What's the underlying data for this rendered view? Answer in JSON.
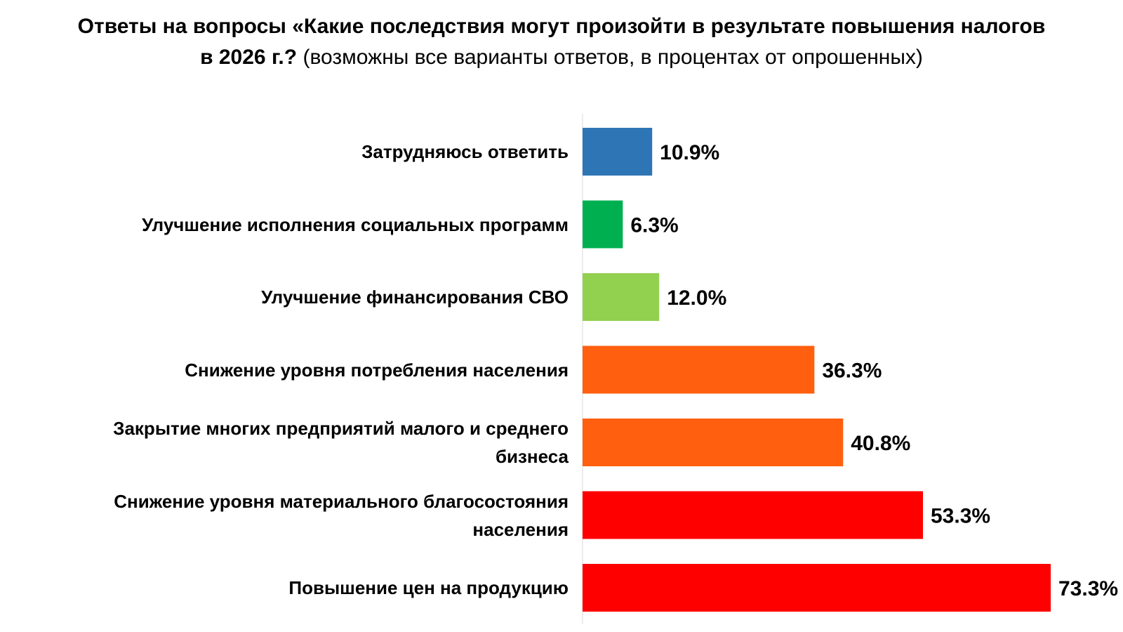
{
  "chart_data": {
    "type": "bar",
    "orientation": "horizontal",
    "title_bold": "Ответы на вопросы «Какие последствия могут произойти в результате повышения налогов в 2026 г.?",
    "title_regular": "(возможны все варианты ответов, в процентах от опрошенных)",
    "categories": [
      "Затрудняюсь ответить",
      "Улучшение исполнения социальных программ",
      "Улучшение финансирования СВО",
      "Снижение уровня потребления населения",
      "Закрытие многих предприятий малого и среднего бизнеса",
      "Снижение  уровня материального благосостояния населения",
      "Повышение цен на продукцию"
    ],
    "values": [
      10.9,
      6.3,
      12.0,
      36.3,
      40.8,
      53.3,
      73.3
    ],
    "value_labels": [
      "10.9%",
      "6.3%",
      "12.0%",
      "36.3%",
      "40.8%",
      "53.3%",
      "73.3%"
    ],
    "colors": [
      "#2E75B6",
      "#00B050",
      "#92D050",
      "#FF5F0F",
      "#FF5F0F",
      "#FF0000",
      "#FF0000"
    ],
    "xlim": [
      0,
      73.3
    ],
    "grid": false,
    "legend": "none"
  }
}
